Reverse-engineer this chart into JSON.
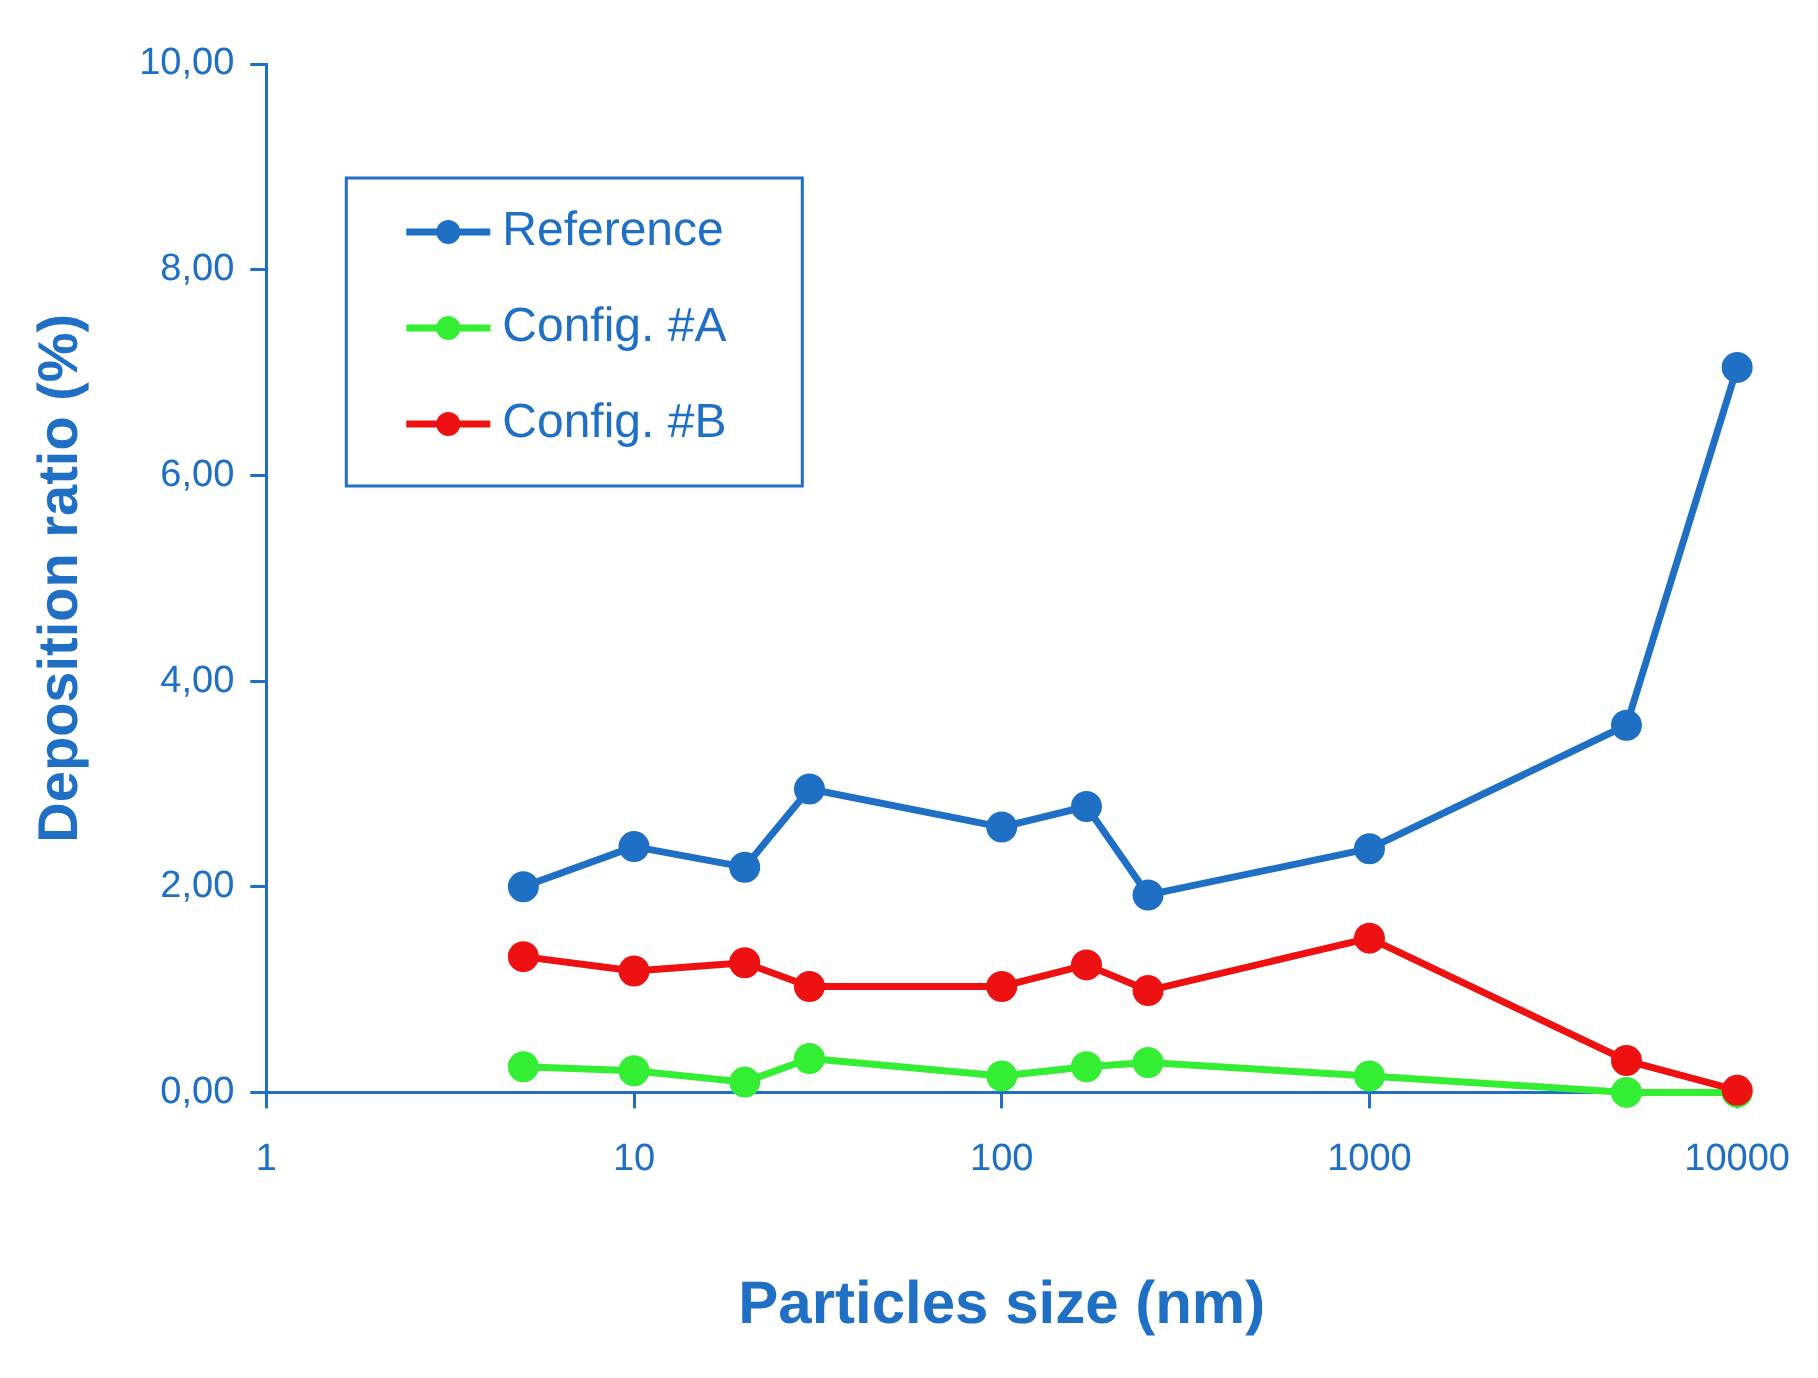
{
  "chart_data": {
    "type": "line",
    "xlabel": "Particles size (nm)",
    "ylabel": "Deposition ratio (%)",
    "x": [
      5,
      10,
      20,
      30,
      100,
      170,
      250,
      1000,
      5000,
      10000
    ],
    "series": [
      {
        "name": "Reference",
        "color": "#1f6fc5",
        "values": [
          2.0,
          2.39,
          2.19,
          2.95,
          2.58,
          2.78,
          1.92,
          2.37,
          3.57,
          7.05
        ]
      },
      {
        "name": "Config. #A",
        "color": "#33ee33",
        "values": [
          0.25,
          0.21,
          0.1,
          0.33,
          0.16,
          0.25,
          0.29,
          0.16,
          0,
          0
        ]
      },
      {
        "name": "Config. #B",
        "color": "#ee1111",
        "values": [
          1.32,
          1.18,
          1.26,
          1.03,
          1.03,
          1.24,
          0.99,
          1.5,
          0.31,
          0.02
        ]
      }
    ],
    "log": "x",
    "xlim": [
      1,
      10000
    ],
    "xticks": [
      1,
      10,
      100,
      1000,
      10000
    ],
    "ylim": [
      0,
      10
    ],
    "yticks": [
      {
        "value": 0,
        "label": "0,00"
      },
      {
        "value": 2,
        "label": "2,00"
      },
      {
        "value": 4,
        "label": "4,00"
      },
      {
        "value": 6,
        "label": "6,00"
      },
      {
        "value": 8,
        "label": "8,00"
      },
      {
        "value": 10,
        "label": "10,00"
      }
    ],
    "grid": false,
    "legend": "top left",
    "marker": "circle",
    "line_style": "solid"
  }
}
